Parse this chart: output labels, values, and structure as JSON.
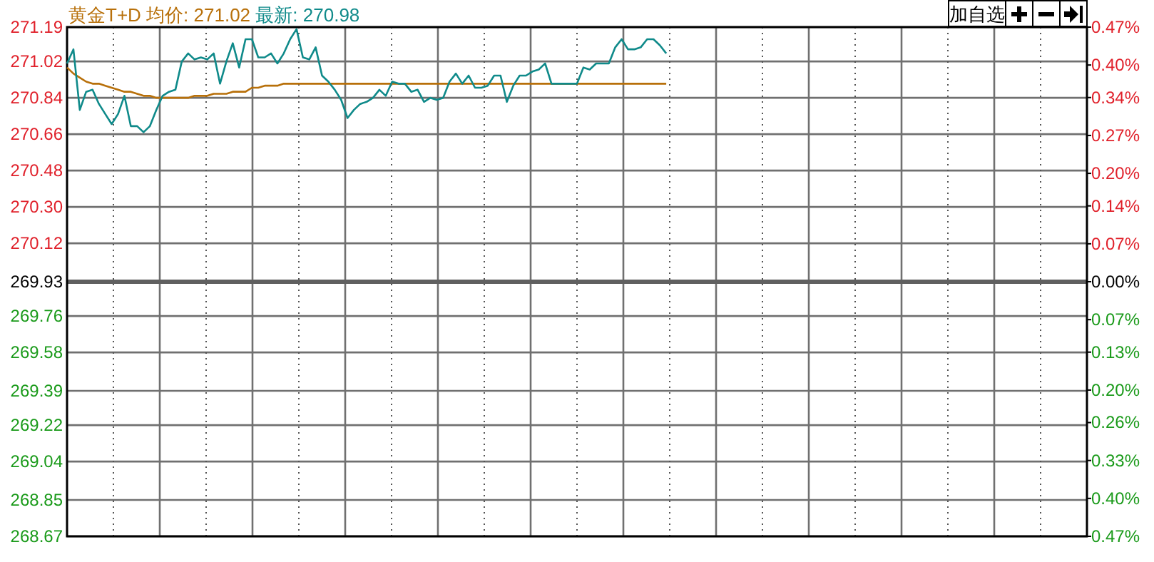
{
  "chart_data": {
    "type": "line",
    "title": "黄金T+D",
    "annotations": [
      "均价: 271.02",
      "最新: 270.98",
      "加自选"
    ],
    "categories": [
      null,
      null,
      null,
      null,
      null,
      null,
      null,
      null,
      null,
      null,
      null,
      null,
      null,
      null,
      null,
      null,
      null,
      null,
      null,
      null,
      null,
      null,
      null,
      null,
      null,
      null,
      null,
      null,
      null,
      null,
      null,
      null,
      null,
      null,
      null,
      null,
      null,
      null,
      null,
      null,
      null,
      null,
      null,
      null,
      null,
      null,
      null,
      null,
      null,
      null,
      null,
      null,
      null,
      null,
      null,
      null,
      null,
      null,
      null,
      null,
      null,
      null,
      null,
      null,
      null,
      null,
      null,
      null,
      null,
      null,
      null,
      null,
      null,
      null,
      null,
      null,
      null,
      null,
      null,
      null,
      null,
      null,
      null,
      null,
      null,
      null,
      null,
      null,
      null,
      null,
      null,
      null,
      null,
      null,
      null,
      null,
      null,
      null,
      null,
      null,
      null,
      null,
      null,
      null,
      null,
      null,
      null,
      null,
      null,
      null,
      null,
      null,
      null,
      null,
      null,
      null,
      null,
      null,
      null,
      null,
      null,
      null,
      null,
      null,
      null,
      null,
      null,
      null,
      null,
      null,
      null,
      null,
      null,
      null,
      null,
      null,
      null,
      null,
      null,
      null,
      null,
      null,
      null,
      null,
      null,
      null,
      null,
      null,
      null,
      null,
      null,
      null,
      null,
      null,
      null,
      null,
      null,
      null,
      null,
      null,
      null
    ],
    "series": [
      {
        "color": "#0f8a8a",
        "values": [
          271.01,
          271.08,
          270.78,
          270.87,
          270.88,
          270.81,
          270.76,
          270.71,
          270.76,
          270.85,
          270.7,
          270.7,
          270.67,
          270.7,
          270.78,
          270.85,
          270.87,
          270.88,
          271.02,
          271.06,
          271.03,
          271.04,
          271.03,
          271.06,
          270.91,
          271.02,
          271.11,
          270.99,
          271.13,
          271.13,
          271.04,
          271.04,
          271.06,
          271.01,
          271.06,
          271.13,
          271.18,
          271.04,
          271.03,
          271.09,
          270.95,
          270.92,
          270.88,
          270.83,
          270.74,
          270.78,
          270.81,
          270.82,
          270.84,
          270.88,
          270.85,
          270.92,
          270.91,
          270.91,
          270.87,
          270.88,
          270.82,
          270.84,
          270.83,
          270.84,
          270.92,
          270.96,
          270.91,
          270.95,
          270.89,
          270.89,
          270.9,
          270.95,
          270.95,
          270.82,
          270.9,
          270.95,
          270.95,
          270.97,
          270.98,
          271.01,
          270.91,
          270.91,
          270.91,
          270.91,
          270.91,
          270.99,
          270.98,
          271.01,
          271.01,
          271.01,
          271.09,
          271.13,
          271.08,
          271.08,
          271.09,
          271.13,
          271.13,
          271.1,
          271.06,
          null,
          null,
          null,
          null,
          null,
          null,
          null,
          null,
          null,
          null,
          null,
          null,
          null,
          null,
          null,
          null,
          null,
          null,
          null,
          null,
          null,
          null,
          null,
          null,
          null,
          null,
          null,
          null,
          null,
          null,
          null,
          null,
          null,
          null,
          null,
          null,
          null,
          null,
          null,
          null,
          null,
          null,
          null,
          null,
          null,
          null,
          null,
          null,
          null,
          null,
          null,
          null,
          null,
          null,
          null,
          null,
          null,
          null,
          null,
          null,
          null,
          null,
          null,
          null,
          null,
          null
        ]
      },
      {
        "color": "#b8700a",
        "values": [
          270.99,
          270.96,
          270.94,
          270.92,
          270.91,
          270.91,
          270.9,
          270.89,
          270.88,
          270.87,
          270.87,
          270.86,
          270.85,
          270.85,
          270.84,
          270.84,
          270.84,
          270.84,
          270.84,
          270.84,
          270.85,
          270.85,
          270.85,
          270.86,
          270.86,
          270.86,
          270.87,
          270.87,
          270.87,
          270.89,
          270.89,
          270.9,
          270.9,
          270.9,
          270.91,
          270.91,
          270.91,
          270.91,
          270.91,
          270.91,
          270.91,
          270.91,
          270.91,
          270.91,
          270.91,
          270.91,
          270.91,
          270.91,
          270.91,
          270.91,
          270.91,
          270.91,
          270.91,
          270.91,
          270.91,
          270.91,
          270.91,
          270.91,
          270.91,
          270.91,
          270.91,
          270.91,
          270.91,
          270.91,
          270.91,
          270.91,
          270.91,
          270.91,
          270.91,
          270.91,
          270.91,
          270.91,
          270.91,
          270.91,
          270.91,
          270.91,
          270.91,
          270.91,
          270.91,
          270.91,
          270.91,
          270.91,
          270.91,
          270.91,
          270.91,
          270.91,
          270.91,
          270.91,
          270.91,
          270.91,
          270.91,
          270.91,
          270.91,
          270.91,
          270.91,
          null,
          null,
          null,
          null,
          null,
          null,
          null,
          null,
          null,
          null,
          null,
          null,
          null,
          null,
          null,
          null,
          null,
          null,
          null,
          null,
          null,
          null,
          null,
          null,
          null,
          null,
          null,
          null,
          null,
          null,
          null,
          null,
          null,
          null,
          null,
          null,
          null,
          null,
          null,
          null,
          null,
          null,
          null,
          null,
          null,
          null,
          null,
          null,
          null,
          null,
          null,
          null,
          null,
          null,
          null,
          null,
          null,
          null,
          null,
          null,
          null,
          null,
          null,
          null,
          null,
          null
        ]
      }
    ],
    "ylim": [
      268.67,
      271.19
    ],
    "yticks": [
      271.19,
      271.02,
      270.84,
      270.66,
      270.48,
      {
        "value": 270.3,
        "label": "270.30"
      },
      270.12,
      269.93,
      269.76,
      269.58,
      269.39,
      269.22,
      269.04,
      268.85,
      268.67
    ],
    "y2lim": [
      -0.47,
      0.47
    ],
    "y2ticks": [
      {
        "value": 0.47,
        "label": "0.47%"
      },
      {
        "value": 0.4,
        "label": "0.40%"
      },
      {
        "value": 0.34,
        "label": "0.34%"
      },
      {
        "value": 0.27,
        "label": "0.27%"
      },
      {
        "value": 0.2,
        "label": "0.20%"
      },
      {
        "value": 0.14,
        "label": "0.14%"
      },
      {
        "value": 0.07,
        "label": "0.07%"
      },
      {
        "value": 0,
        "label": "0.00%"
      },
      {
        "value": -0.07,
        "label": "0.07%"
      },
      {
        "value": -0.13,
        "label": "0.13%"
      },
      {
        "value": -0.2,
        "label": "0.20%"
      },
      {
        "value": -0.26,
        "label": "0.26%"
      },
      {
        "value": -0.33,
        "label": "0.33%"
      },
      {
        "value": -0.4,
        "label": "0.40%"
      },
      {
        "value": -0.47,
        "label": "0.47%"
      }
    ],
    "ref_lines": [
      {
        "axis": "y",
        "value": 269.93,
        "color": "#606060"
      }
    ],
    "grid": true,
    "marker": "none",
    "line_style": "solid"
  }
}
